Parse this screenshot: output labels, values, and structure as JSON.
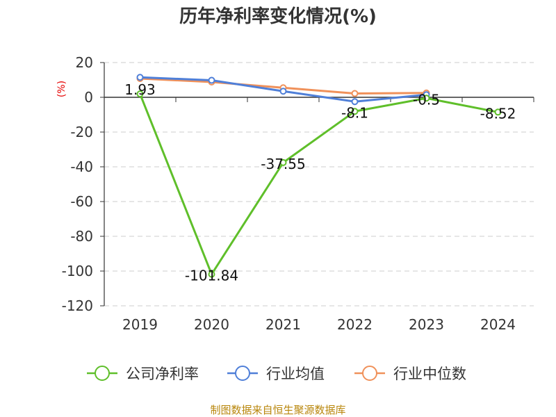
{
  "chart_data": {
    "type": "line",
    "title": "历年净利率变化情况(%)",
    "unit_label": "(%)",
    "categories": [
      "2019",
      "2020",
      "2021",
      "2022",
      "2023",
      "2024"
    ],
    "ylim": [
      -120,
      20
    ],
    "yticks": [
      20,
      0,
      -20,
      -40,
      -60,
      -80,
      -100,
      -120
    ],
    "grid": true,
    "legend_position": "bottom",
    "series": [
      {
        "name": "公司净利率",
        "color": "#5fbf2a",
        "values": [
          1.93,
          -101.84,
          -37.55,
          -8.1,
          -0.5,
          -8.52
        ],
        "labels": [
          "1.93",
          "-101.84",
          "-37.55",
          "-8.1",
          "-0.5",
          "-8.52"
        ]
      },
      {
        "name": "行业均值",
        "color": "#4f7fd8",
        "values": [
          11.5,
          9.8,
          3.5,
          -2.5,
          1.5,
          null
        ]
      },
      {
        "name": "行业中位数",
        "color": "#f0915a",
        "values": [
          10.8,
          8.8,
          5.5,
          2.2,
          2.5,
          null
        ]
      }
    ]
  },
  "source_text": "制图数据来自恒生聚源数据库"
}
